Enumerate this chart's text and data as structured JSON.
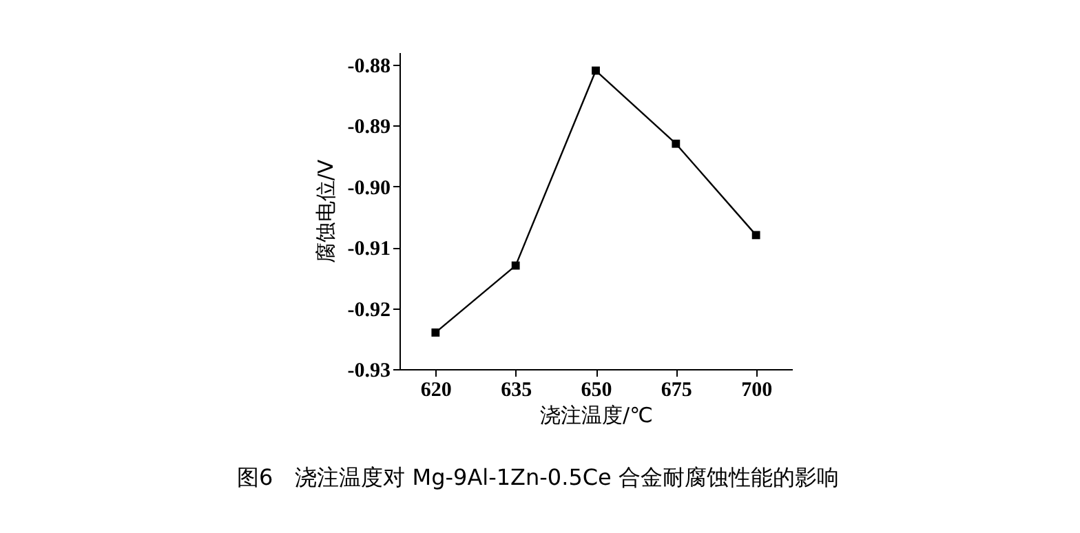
{
  "chart_data": {
    "type": "line",
    "title": "图6　浇注温度对 Mg-9Al-1Zn-0.5Ce 合金耐腐蚀性能的影响",
    "xlabel": "浇注温度/℃",
    "ylabel": "腐蚀电位/V",
    "categories": [
      "620",
      "635",
      "650",
      "675",
      "700"
    ],
    "series": [
      {
        "color": "#000000",
        "values": [
          -0.924,
          -0.913,
          -0.881,
          -0.893,
          -0.908
        ]
      }
    ],
    "ylim": [
      -0.93,
      -0.878
    ],
    "yticks": [
      {
        "value": -0.93,
        "label": "-0.93"
      },
      {
        "value": -0.92,
        "label": "-0.92"
      },
      {
        "value": -0.91,
        "label": "-0.91"
      },
      {
        "value": -0.9,
        "label": "-0.90"
      },
      {
        "value": -0.89,
        "label": "-0.89"
      },
      {
        "value": -0.88,
        "label": "-0.88"
      }
    ],
    "marker": "square",
    "line_style": "solid",
    "grid": false,
    "legend": false
  }
}
